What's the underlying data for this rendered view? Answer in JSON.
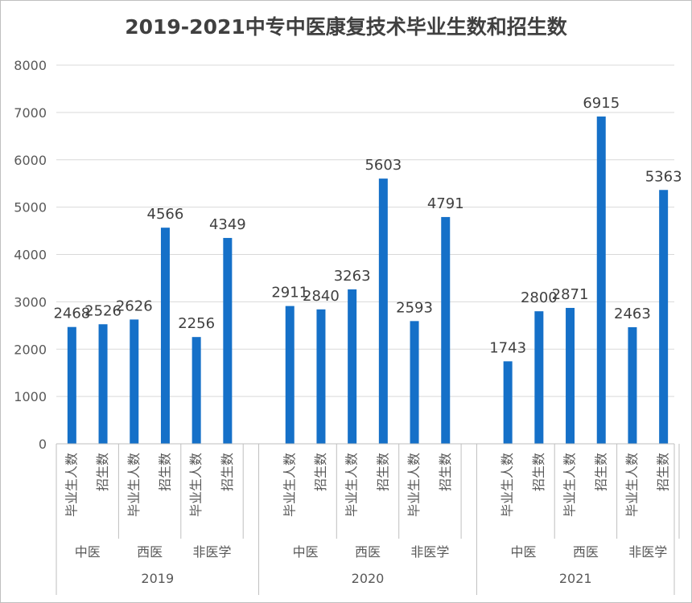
{
  "chart_data": {
    "type": "bar",
    "title": "2019-2021中专中医康复技术毕业生数和招生数",
    "xlabel": "",
    "ylabel": "",
    "ylim": [
      0,
      8000
    ],
    "yticks": [
      0,
      1000,
      2000,
      3000,
      4000,
      5000,
      6000,
      7000,
      8000
    ],
    "grid": true,
    "legend": "none",
    "bar_color": "#1570c8",
    "groups": [
      {
        "year": "2019",
        "subgroups": [
          {
            "name": "中医",
            "bars": [
              {
                "label": "毕业生人数",
                "value": 2468
              },
              {
                "label": "招生数",
                "value": 2526
              }
            ]
          },
          {
            "name": "西医",
            "bars": [
              {
                "label": "毕业生人数",
                "value": 2626
              },
              {
                "label": "招生数",
                "value": 4566
              }
            ]
          },
          {
            "name": "非医学",
            "bars": [
              {
                "label": "毕业生人数",
                "value": 2256
              },
              {
                "label": "招生数",
                "value": 4349
              }
            ]
          }
        ]
      },
      {
        "year": "2020",
        "subgroups": [
          {
            "name": "中医",
            "bars": [
              {
                "label": "毕业生人数",
                "value": 2911
              },
              {
                "label": "招生数",
                "value": 2840
              }
            ]
          },
          {
            "name": "西医",
            "bars": [
              {
                "label": "毕业生人数",
                "value": 3263
              },
              {
                "label": "招生数",
                "value": 5603
              }
            ]
          },
          {
            "name": "非医学",
            "bars": [
              {
                "label": "毕业生人数",
                "value": 2593
              },
              {
                "label": "招生数",
                "value": 4791
              }
            ]
          }
        ]
      },
      {
        "year": "2021",
        "subgroups": [
          {
            "name": "中医",
            "bars": [
              {
                "label": "毕业生人数",
                "value": 1743
              },
              {
                "label": "招生数",
                "value": 2800
              }
            ]
          },
          {
            "name": "西医",
            "bars": [
              {
                "label": "毕业生人数",
                "value": 2871
              },
              {
                "label": "招生数",
                "value": 6915
              }
            ]
          },
          {
            "name": "非医学",
            "bars": [
              {
                "label": "毕业生人数",
                "value": 2463
              },
              {
                "label": "招生数",
                "value": 5363
              }
            ]
          }
        ]
      }
    ]
  }
}
